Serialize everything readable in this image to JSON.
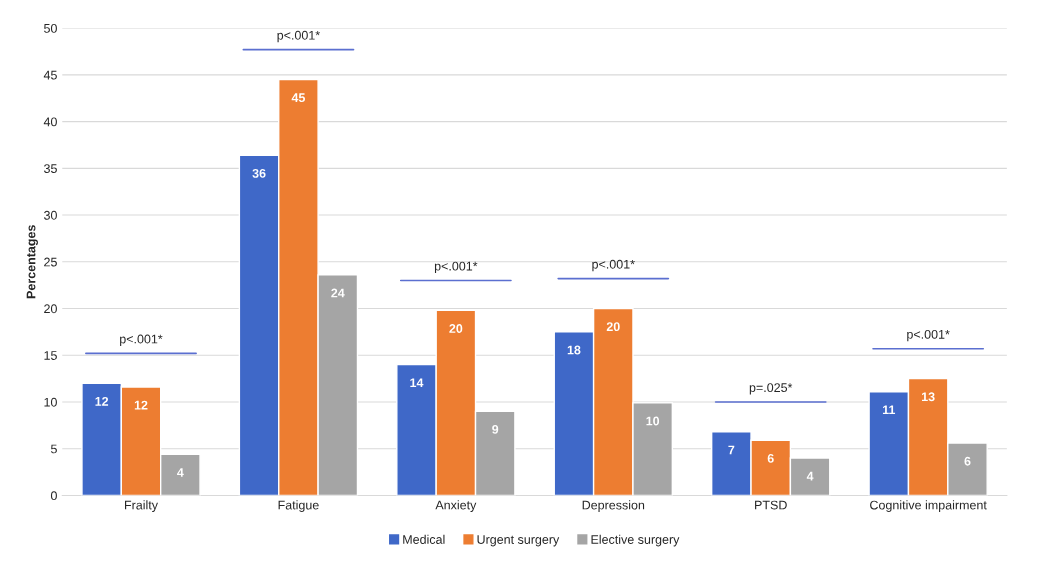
{
  "chart_data": {
    "type": "bar",
    "ylabel": "Percentages",
    "categories": [
      "Frailty",
      "Fatigue",
      "Anxiety",
      "Depression",
      "PTSD",
      "Cognitive impairment"
    ],
    "series": [
      {
        "name": "Medical",
        "color": "#3f68c8",
        "values": [
          12.0,
          36.4,
          14.0,
          17.5,
          6.8,
          11.1
        ],
        "value_labels": [
          "12",
          "36",
          "14",
          "18",
          "7",
          "11"
        ]
      },
      {
        "name": "Urgent surgery",
        "color": "#ed7d31",
        "values": [
          11.6,
          44.5,
          19.8,
          20.0,
          5.9,
          12.5
        ],
        "value_labels": [
          "12",
          "45",
          "20",
          "20",
          "6",
          "13"
        ]
      },
      {
        "name": "Elective surgery",
        "color": "#a5a5a5",
        "values": [
          4.4,
          23.6,
          9.0,
          9.9,
          4.0,
          5.6
        ],
        "value_labels": [
          "4",
          "24",
          "9",
          "10",
          "4",
          "6"
        ]
      }
    ],
    "ylim": [
      0,
      50
    ],
    "yticks": [
      0,
      5,
      10,
      15,
      20,
      25,
      30,
      35,
      40,
      45,
      50
    ],
    "grid": "y",
    "legend": "bottom",
    "annotations": [
      "p<.001*",
      "p<.001*",
      "p<.001*",
      "p<.001*",
      "p=.025*",
      "p<.001*"
    ]
  }
}
